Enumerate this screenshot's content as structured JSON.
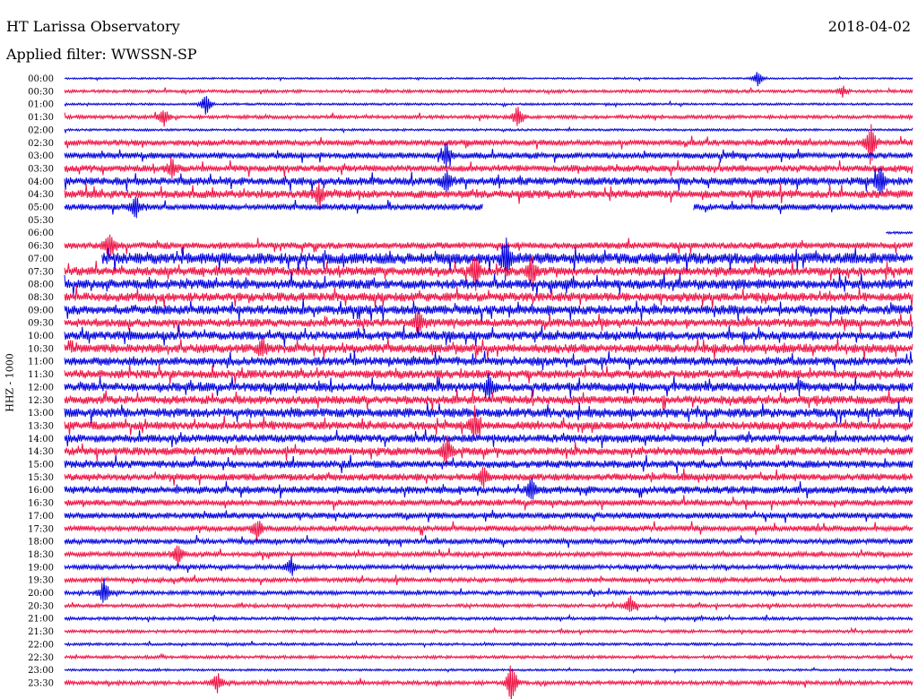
{
  "header": {
    "station": "HT Larissa Observatory",
    "date": "2018-04-02",
    "filter": "Applied filter: WWSSN-SP"
  },
  "channel_label": "HHZ - 1000",
  "colors": {
    "even_trace": "#0000dd",
    "odd_trace": "#ee1144",
    "text": "#000000"
  },
  "chart_data": {
    "type": "line",
    "title": "HT Larissa Observatory",
    "subtitle": "Applied filter: WWSSN-SP",
    "date": "2018-04-02",
    "ylabel": "HHZ - 1000",
    "xlabel": "",
    "row_labels": [
      "00:00",
      "00:30",
      "01:00",
      "01:30",
      "02:00",
      "02:30",
      "03:00",
      "03:30",
      "04:00",
      "04:30",
      "05:00",
      "05:30",
      "06:00",
      "06:30",
      "07:00",
      "07:30",
      "08:00",
      "08:30",
      "09:00",
      "09:30",
      "10:00",
      "10:30",
      "11:00",
      "11:30",
      "12:00",
      "12:30",
      "13:00",
      "13:30",
      "14:00",
      "14:30",
      "15:00",
      "15:30",
      "16:00",
      "16:30",
      "17:00",
      "17:30",
      "18:00",
      "18:30",
      "19:00",
      "19:30",
      "20:00",
      "20:30",
      "21:00",
      "21:30",
      "22:00",
      "22:30",
      "23:00",
      "23:30"
    ],
    "row_colors": "alternating blue / red",
    "row_amplitude": [
      0.8,
      1.4,
      1.0,
      1.6,
      1.0,
      2.6,
      2.8,
      3.0,
      3.6,
      3.6,
      2.8,
      0.0,
      1.0,
      3.0,
      5.0,
      4.0,
      4.4,
      4.0,
      4.2,
      3.8,
      4.0,
      4.0,
      3.8,
      3.8,
      4.0,
      3.8,
      4.2,
      3.6,
      3.6,
      3.6,
      3.4,
      3.2,
      3.4,
      2.8,
      2.8,
      2.6,
      2.4,
      2.2,
      2.0,
      2.0,
      1.8,
      1.6,
      1.4,
      1.4,
      1.2,
      1.4,
      1.0,
      1.8
    ],
    "gaps": [
      {
        "row": "05:00",
        "from_min": 14.8,
        "to_min": 22.2
      },
      {
        "row": "05:30",
        "from_min": 0.0,
        "to_min": 30.0
      },
      {
        "row": "06:00",
        "from_min": 0.0,
        "to_min": 29.0
      },
      {
        "row": "07:00",
        "from_min": 0.0,
        "to_min": 1.3
      }
    ],
    "events": [
      {
        "row": "00:00",
        "minute": 24.5,
        "amp": 10
      },
      {
        "row": "00:30",
        "minute": 27.5,
        "amp": 7
      },
      {
        "row": "01:00",
        "minute": 5.0,
        "amp": 16
      },
      {
        "row": "01:30",
        "minute": 3.5,
        "amp": 12
      },
      {
        "row": "01:30",
        "minute": 16.0,
        "amp": 14
      },
      {
        "row": "02:30",
        "minute": 28.5,
        "amp": 26
      },
      {
        "row": "03:30",
        "minute": 3.8,
        "amp": 12
      },
      {
        "row": "03:00",
        "minute": 13.5,
        "amp": 14
      },
      {
        "row": "04:30",
        "minute": 9.0,
        "amp": 15
      },
      {
        "row": "04:00",
        "minute": 13.5,
        "amp": 14
      },
      {
        "row": "04:00",
        "minute": 28.8,
        "amp": 22
      },
      {
        "row": "05:00",
        "minute": 2.5,
        "amp": 14
      },
      {
        "row": "06:30",
        "minute": 1.6,
        "amp": 18
      },
      {
        "row": "07:00",
        "minute": 15.6,
        "amp": 22
      },
      {
        "row": "07:30",
        "minute": 14.5,
        "amp": 24
      },
      {
        "row": "07:30",
        "minute": 16.5,
        "amp": 20
      },
      {
        "row": "09:30",
        "minute": 12.5,
        "amp": 18
      },
      {
        "row": "10:30",
        "minute": 7.0,
        "amp": 14
      },
      {
        "row": "12:00",
        "minute": 15.0,
        "amp": 14
      },
      {
        "row": "13:30",
        "minute": 14.5,
        "amp": 20
      },
      {
        "row": "14:30",
        "minute": 13.5,
        "amp": 18
      },
      {
        "row": "15:30",
        "minute": 14.8,
        "amp": 14
      },
      {
        "row": "16:00",
        "minute": 16.5,
        "amp": 14
      },
      {
        "row": "17:30",
        "minute": 6.8,
        "amp": 14
      },
      {
        "row": "18:30",
        "minute": 4.0,
        "amp": 14
      },
      {
        "row": "19:00",
        "minute": 8.0,
        "amp": 12
      },
      {
        "row": "20:00",
        "minute": 1.4,
        "amp": 16
      },
      {
        "row": "20:30",
        "minute": 20.0,
        "amp": 14
      },
      {
        "row": "23:30",
        "minute": 15.8,
        "amp": 28
      },
      {
        "row": "23:30",
        "minute": 5.4,
        "amp": 14
      }
    ]
  }
}
